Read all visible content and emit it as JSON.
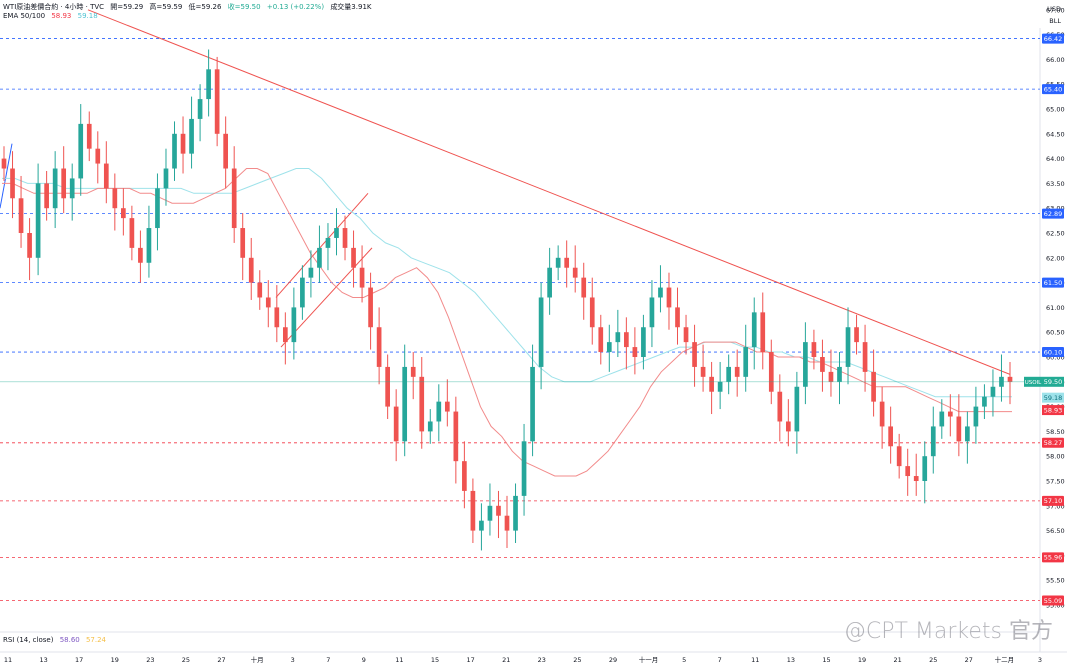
{
  "header": {
    "symbol": "WTI原油差價合約 · 4小時 · TVC",
    "open": "開=59.29",
    "high": "高=59.59",
    "low": "低=59.26",
    "close": "收=59.50",
    "change": "+0.13 (+0.22%)",
    "volume": "成交量3.91K",
    "ema_label": "EMA 50/100",
    "ema50_value": "58.93",
    "ema100_value": "59.18",
    "rsi_label": "RSI (14, close)",
    "rsi_value1": "58.60",
    "rsi_value2": "57.24"
  },
  "currency": [
    "USD",
    "BLL"
  ],
  "watermark": "@CPT Markets 官方",
  "colors": {
    "up": "#26a69a",
    "down": "#ef5350",
    "ema50": "#f28b8b",
    "ema100": "#9ee2ea",
    "trendline": "#ef5350",
    "channel": "#ef5350",
    "level_blue": "#2962ff",
    "level_red": "#f23645",
    "last_price": "#22ab94"
  },
  "chart_data": {
    "type": "candlestick",
    "ylim": [
      55.0,
      67.0
    ],
    "y_ticks": [
      "67.00",
      "66.50",
      "66.00",
      "65.50",
      "65.00",
      "64.50",
      "64.00",
      "63.50",
      "63.00",
      "62.50",
      "62.00",
      "61.50",
      "61.00",
      "60.50",
      "60.00",
      "59.50",
      "59.00",
      "58.50",
      "58.00",
      "57.50",
      "57.00",
      "56.50",
      "56.00",
      "55.50",
      "55.00"
    ],
    "x_ticks": [
      "11",
      "13",
      "17",
      "19",
      "23",
      "25",
      "27",
      "十月",
      "3",
      "7",
      "9",
      "11",
      "15",
      "17",
      "21",
      "23",
      "25",
      "29",
      "十一月",
      "5",
      "7",
      "11",
      "13",
      "15",
      "19",
      "21",
      "25",
      "27",
      "十二月",
      "3"
    ],
    "price_labels": [
      {
        "value": "66.42",
        "kind": "blue"
      },
      {
        "value": "65.40",
        "kind": "blue"
      },
      {
        "value": "62.89",
        "kind": "blue"
      },
      {
        "value": "61.50",
        "kind": "blue"
      },
      {
        "value": "60.10",
        "kind": "blue"
      },
      {
        "value": "58.27",
        "kind": "red"
      },
      {
        "value": "57.10",
        "kind": "red"
      },
      {
        "value": "55.96",
        "kind": "red"
      },
      {
        "value": "55.09",
        "kind": "red"
      }
    ],
    "last_price": {
      "symbol": "USOIL",
      "value": "59.50"
    },
    "ema100_label": "59.18",
    "ema50_label": "58.93",
    "closes": [
      63.8,
      63.2,
      62.5,
      62.0,
      63.5,
      63.0,
      63.8,
      63.2,
      63.6,
      64.7,
      64.2,
      63.9,
      63.4,
      63.0,
      62.8,
      62.2,
      61.9,
      62.6,
      63.4,
      63.8,
      64.5,
      64.1,
      64.8,
      65.2,
      65.8,
      64.5,
      63.8,
      62.6,
      62.0,
      61.5,
      61.2,
      61.0,
      60.6,
      60.3,
      61.0,
      61.6,
      61.8,
      62.2,
      62.4,
      62.6,
      62.2,
      61.8,
      61.4,
      60.6,
      59.8,
      59.0,
      58.3,
      59.8,
      59.6,
      58.5,
      58.7,
      59.1,
      58.9,
      57.9,
      57.3,
      56.5,
      56.7,
      57.0,
      56.8,
      56.5,
      57.2,
      58.3,
      59.8,
      61.2,
      61.8,
      62.0,
      61.8,
      61.6,
      61.2,
      60.6,
      60.1,
      60.3,
      60.5,
      60.2,
      60.0,
      60.6,
      61.2,
      61.4,
      61.0,
      60.6,
      60.3,
      59.8,
      59.6,
      59.3,
      59.5,
      59.8,
      59.6,
      60.2,
      60.9,
      60.1,
      59.3,
      58.7,
      58.5,
      59.4,
      60.3,
      60.0,
      59.7,
      59.5,
      59.8,
      60.6,
      60.3,
      59.7,
      59.1,
      58.6,
      58.2,
      57.8,
      57.6,
      57.5,
      58.0,
      58.6,
      58.9,
      58.8,
      58.3,
      58.6,
      59.0,
      59.2,
      59.4,
      59.6,
      59.5
    ],
    "ema50": [
      63.5,
      63.5,
      63.4,
      63.3,
      63.3,
      63.3,
      63.3,
      63.3,
      63.3,
      63.4,
      63.4,
      63.4,
      63.4,
      63.3,
      63.3,
      63.2,
      63.1,
      63.1,
      63.1,
      63.2,
      63.3,
      63.4,
      63.6,
      63.8,
      63.8,
      63.7,
      63.3,
      62.9,
      62.5,
      62.1,
      61.8,
      61.5,
      61.3,
      61.2,
      61.2,
      61.3,
      61.4,
      61.6,
      61.7,
      61.8,
      61.6,
      61.3,
      60.8,
      60.2,
      59.6,
      59.0,
      58.6,
      58.4,
      58.1,
      57.9,
      57.8,
      57.7,
      57.6,
      57.6,
      57.6,
      57.7,
      57.9,
      58.1,
      58.4,
      58.7,
      59.0,
      59.4,
      59.7,
      59.9,
      60.1,
      60.2,
      60.3,
      60.3,
      60.3,
      60.3,
      60.2,
      60.1,
      60.1,
      60.0,
      60.0,
      60.0,
      59.9,
      59.9,
      59.8,
      59.7,
      59.6,
      59.5,
      59.4,
      59.4,
      59.4,
      59.4,
      59.3,
      59.2,
      59.1,
      59.0,
      58.9,
      58.9,
      58.9,
      58.9,
      58.9,
      58.9
    ],
    "ema100": [
      63.6,
      63.6,
      63.5,
      63.5,
      63.5,
      63.4,
      63.4,
      63.4,
      63.4,
      63.4,
      63.4,
      63.4,
      63.4,
      63.4,
      63.4,
      63.3,
      63.3,
      63.3,
      63.3,
      63.4,
      63.5,
      63.6,
      63.7,
      63.8,
      63.8,
      63.6,
      63.3,
      63.0,
      62.8,
      62.5,
      62.3,
      62.2,
      62.0,
      61.9,
      61.8,
      61.7,
      61.5,
      61.3,
      61.0,
      60.7,
      60.4,
      60.1,
      59.8,
      59.6,
      59.5,
      59.5,
      59.5,
      59.6,
      59.7,
      59.8,
      59.9,
      60.0,
      60.1,
      60.2,
      60.2,
      60.3,
      60.3,
      60.3,
      60.2,
      60.2,
      60.1,
      60.1,
      60.0,
      60.0,
      59.9,
      59.9,
      59.9,
      59.8,
      59.7,
      59.6,
      59.5,
      59.4,
      59.3,
      59.2,
      59.2,
      59.2,
      59.2,
      59.2,
      59.2,
      59.2
    ]
  }
}
